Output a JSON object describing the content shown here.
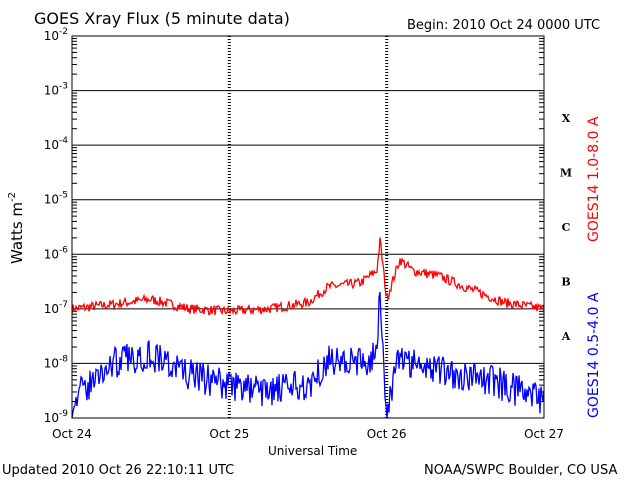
{
  "header": {
    "title": "GOES Xray Flux (5 minute data)",
    "begin": "Begin:  2010 Oct 24 0000 UTC"
  },
  "footer": {
    "updated": "Updated 2010 Oct 26 22:10:11 UTC",
    "credit": "NOAA/SWPC Boulder, CO USA"
  },
  "chart_data": {
    "type": "line",
    "title": "GOES Xray Flux (5 minute data)",
    "xlabel": "Universal Time",
    "ylabel": "Watts m",
    "ylabel_sup": "-2",
    "yscale": "log",
    "ylim": [
      1e-09,
      0.01
    ],
    "xlim": [
      "2010-10-24 00:00",
      "2010-10-27 00:00"
    ],
    "x_ticks": [
      "Oct 24",
      "Oct 25",
      "Oct 26",
      "Oct 27"
    ],
    "y_ticks": [
      {
        "base": "10",
        "exp": "-9"
      },
      {
        "base": "10",
        "exp": "-8"
      },
      {
        "base": "10",
        "exp": "-7"
      },
      {
        "base": "10",
        "exp": "-6"
      },
      {
        "base": "10",
        "exp": "-5"
      },
      {
        "base": "10",
        "exp": "-4"
      },
      {
        "base": "10",
        "exp": "-3"
      },
      {
        "base": "10",
        "exp": "-2"
      }
    ],
    "flare_classes": [
      "A",
      "B",
      "C",
      "M",
      "X"
    ],
    "grid": true,
    "series": [
      {
        "name": "GOES14 1.0-8.0 A",
        "color": "#ff0000",
        "x": [
          "2010-10-24 00:00",
          "2010-10-24 06:00",
          "2010-10-24 12:00",
          "2010-10-24 18:00",
          "2010-10-25 00:00",
          "2010-10-25 06:00",
          "2010-10-25 12:00",
          "2010-10-25 15:00",
          "2010-10-25 20:00",
          "2010-10-25 22:30",
          "2010-10-25 23:00",
          "2010-10-26 00:00",
          "2010-10-26 02:00",
          "2010-10-26 04:00",
          "2010-10-26 08:00",
          "2010-10-26 12:00",
          "2010-10-26 18:00",
          "2010-10-27 00:00"
        ],
        "values": [
          1e-07,
          1.2e-07,
          1.5e-07,
          1e-07,
          9e-08,
          1e-07,
          1.3e-07,
          2.5e-07,
          3e-07,
          5e-07,
          1.8e-06,
          1.5e-07,
          8e-07,
          5e-07,
          4e-07,
          2.5e-07,
          1.3e-07,
          1e-07
        ]
      },
      {
        "name": "GOES14 0.5-4.0 A",
        "color": "#0000ff",
        "x": [
          "2010-10-24 00:00",
          "2010-10-24 06:00",
          "2010-10-24 12:00",
          "2010-10-24 18:00",
          "2010-10-25 00:00",
          "2010-10-25 06:00",
          "2010-10-25 12:00",
          "2010-10-25 15:00",
          "2010-10-25 20:00",
          "2010-10-25 22:30",
          "2010-10-25 23:00",
          "2010-10-26 00:00",
          "2010-10-26 02:00",
          "2010-10-26 04:00",
          "2010-10-26 08:00",
          "2010-10-26 12:00",
          "2010-10-26 18:00",
          "2010-10-27 00:00"
        ],
        "values": [
          2e-09,
          1e-08,
          1.5e-08,
          6e-09,
          4e-09,
          3e-09,
          4e-09,
          1.2e-08,
          1e-08,
          1.5e-08,
          2e-07,
          1e-09,
          1.5e-08,
          1e-08,
          8e-09,
          6e-09,
          4e-09,
          2e-09
        ]
      }
    ]
  }
}
